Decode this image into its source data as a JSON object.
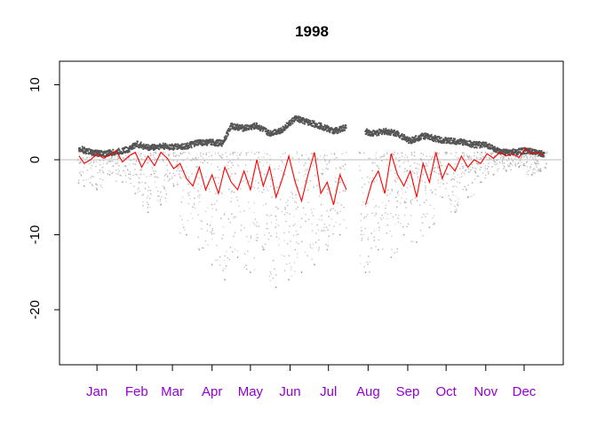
{
  "chart_data": {
    "type": "scatter",
    "title": "1998",
    "xlabel": "",
    "ylabel": "",
    "ylim": [
      -27,
      13.5
    ],
    "xlim": [
      1,
      365
    ],
    "grid": false,
    "legend": "none",
    "reference_line": {
      "y": 0,
      "color": "#bfbfbf"
    },
    "y_ticks": [
      {
        "value": 10,
        "label": "10"
      },
      {
        "value": 0,
        "label": "0"
      },
      {
        "value": -10,
        "label": "-10"
      },
      {
        "value": -20,
        "label": "-20"
      }
    ],
    "x_ticks": [
      {
        "value": 15,
        "label": "Jan"
      },
      {
        "value": 46,
        "label": "Feb"
      },
      {
        "value": 74,
        "label": "Mar"
      },
      {
        "value": 105,
        "label": "Apr"
      },
      {
        "value": 135,
        "label": "May"
      },
      {
        "value": 166,
        "label": "Jun"
      },
      {
        "value": 196,
        "label": "Jul"
      },
      {
        "value": 227,
        "label": "Aug"
      },
      {
        "value": 258,
        "label": "Sep"
      },
      {
        "value": 288,
        "label": "Oct"
      },
      {
        "value": 319,
        "label": "Nov"
      },
      {
        "value": 349,
        "label": "Dec"
      }
    ],
    "x_tick_label_color": "#9400d3",
    "series": [
      {
        "color": "#555555",
        "kind": "upper-band",
        "x": [
          1,
          10,
          20,
          30,
          40,
          46,
          55,
          65,
          75,
          85,
          95,
          105,
          113,
          120,
          130,
          140,
          150,
          160,
          170,
          180,
          190,
          200,
          210,
          213,
          225,
          230,
          240,
          250,
          260,
          270,
          280,
          290,
          300,
          310,
          320,
          330,
          340,
          350,
          360,
          365
        ],
        "y": [
          1.5,
          1.0,
          0.8,
          1.0,
          1.4,
          2.1,
          1.6,
          1.8,
          1.7,
          1.8,
          2.3,
          2.3,
          2.2,
          4.5,
          4.2,
          4.5,
          3.5,
          4.0,
          5.5,
          5.0,
          4.5,
          3.8,
          4.3,
          null,
          3.8,
          3.5,
          3.8,
          3.5,
          2.5,
          3.2,
          2.8,
          2.5,
          2.4,
          2.0,
          2.0,
          1.0,
          1.0,
          1.2,
          0.9,
          0.8
        ]
      },
      {
        "color": "#ff0000",
        "kind": "line",
        "x": [
          1,
          5,
          10,
          15,
          20,
          25,
          30,
          35,
          40,
          45,
          50,
          55,
          60,
          65,
          70,
          75,
          80,
          85,
          90,
          95,
          100,
          105,
          110,
          115,
          120,
          125,
          130,
          135,
          140,
          145,
          150,
          155,
          160,
          165,
          170,
          175,
          180,
          185,
          190,
          195,
          200,
          205,
          210,
          213,
          225,
          230,
          235,
          240,
          245,
          250,
          255,
          260,
          265,
          270,
          275,
          280,
          285,
          290,
          295,
          300,
          305,
          310,
          315,
          320,
          325,
          330,
          335,
          340,
          345,
          350,
          355,
          360,
          365
        ],
        "y": [
          0.5,
          -0.5,
          0.0,
          0.8,
          0.2,
          0.6,
          1.2,
          -0.3,
          0.5,
          1.0,
          -1.0,
          0.5,
          -0.8,
          1.0,
          0.2,
          -1.2,
          -0.5,
          -2.5,
          -3.5,
          -1.0,
          -4.0,
          -2.0,
          -4.5,
          -1.0,
          -3.0,
          -4.0,
          -1.5,
          -4.0,
          0.0,
          -3.5,
          -1.0,
          -5.0,
          -2.5,
          0.5,
          -3.0,
          -5.5,
          -2.0,
          1.0,
          -4.5,
          -3.0,
          -6.0,
          -2.0,
          -4.0,
          null,
          -6.0,
          -3.0,
          -1.5,
          -4.5,
          0.8,
          -2.0,
          -3.5,
          -1.5,
          -5.0,
          -0.5,
          -3.0,
          1.0,
          -2.5,
          -0.5,
          -1.5,
          0.5,
          -1.0,
          0.0,
          -0.5,
          0.8,
          0.2,
          1.0,
          0.5,
          0.8,
          0.3,
          1.5,
          0.8,
          1.0,
          0.5
        ]
      },
      {
        "color": "#a0a0a0",
        "kind": "scatter-cloud",
        "x": [
          5,
          15,
          25,
          35,
          45,
          55,
          65,
          75,
          85,
          95,
          105,
          115,
          125,
          135,
          145,
          155,
          165,
          175,
          185,
          195,
          205,
          225,
          235,
          245,
          255,
          265,
          275,
          285,
          295,
          305,
          315,
          325,
          335,
          345,
          355,
          362
        ],
        "y": [
          -3.5,
          -4.0,
          -2.0,
          -3.0,
          -4.5,
          -7.0,
          -6.0,
          -3.5,
          -10.0,
          -12.0,
          -14.0,
          -16.0,
          -13.0,
          -15.0,
          -12.0,
          -17.0,
          -16.0,
          -15.0,
          -14.0,
          -12.0,
          -10.0,
          -15.0,
          -12.0,
          -13.0,
          -10.0,
          -11.0,
          -9.0,
          -5.0,
          -7.0,
          -5.0,
          -3.0,
          -2.0,
          -1.5,
          -1.0,
          -2.0,
          -1.5
        ]
      }
    ]
  }
}
